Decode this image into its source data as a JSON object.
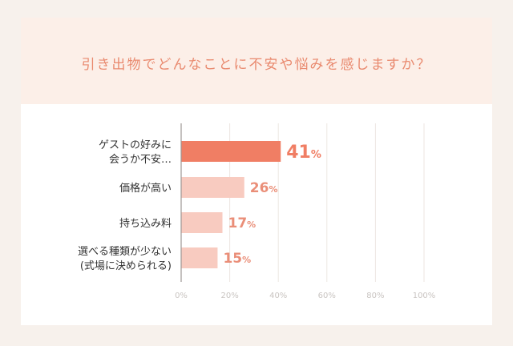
{
  "title": "引き出物でどんなことに不安や悩みを感じますか？",
  "colors": {
    "highlight": "#f07e64",
    "normal": "#f8cbc0",
    "axis": "#9e9895",
    "grid": "#ece6e2",
    "value_highlight": "#f07e64",
    "value_normal": "#ea8e78"
  },
  "chart_data": {
    "type": "bar",
    "orientation": "horizontal",
    "categories": [
      [
        "ゲストの好みに",
        "会うか不安…"
      ],
      [
        "価格が高い"
      ],
      [
        "持ち込み料"
      ],
      [
        "選べる種類が少ない",
        "(式場に決められる)"
      ]
    ],
    "values": [
      41,
      26,
      17,
      15
    ],
    "value_labels": [
      "41",
      "26",
      "17",
      "15"
    ],
    "unit": "%",
    "xlim": [
      0,
      100
    ],
    "ticks": [
      {
        "v": 0,
        "label": "0%"
      },
      {
        "v": 20,
        "label": "20%"
      },
      {
        "v": 40,
        "label": "40%"
      },
      {
        "v": 60,
        "label": "60%"
      },
      {
        "v": 80,
        "label": "80%"
      },
      {
        "v": 100,
        "label": "100%"
      }
    ],
    "grid": true,
    "highlight_index": 0
  }
}
